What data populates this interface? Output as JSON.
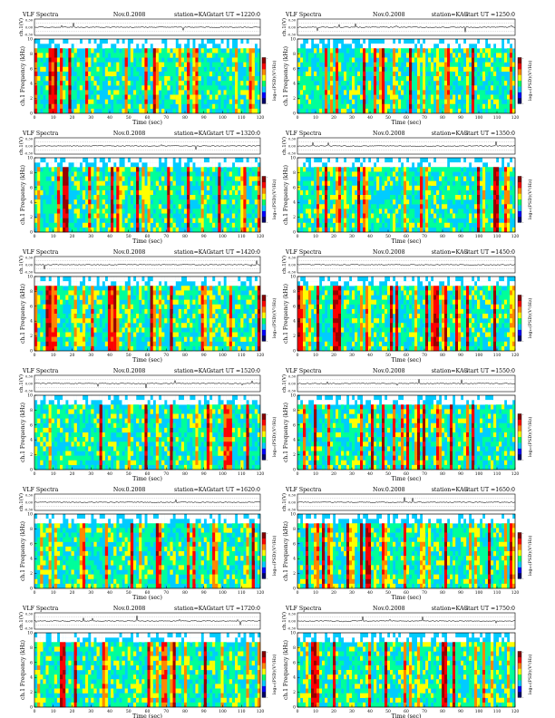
{
  "figure": {
    "spectrogram_palette": [
      "#ffffff",
      "#00ccff",
      "#00ff99",
      "#ffff00",
      "#ff8800",
      "#ff0000",
      "#990000"
    ],
    "colorbar_palette": [
      "#000066",
      "#0000ff",
      "#00ccff",
      "#00ff66",
      "#ffff00",
      "#ff8800",
      "#ff0000",
      "#880000"
    ],
    "panel_border_color": "#000000"
  },
  "chart_data": [
    {
      "type": "heatmap",
      "title_left": "VLF Spectra",
      "title_date": "Nov.0.2008",
      "title_station": "station=KAG",
      "title_start": "start  UT  =1220:0",
      "waveform_ylabel": "ch.1(V)",
      "waveform_ticks": [
        "0.30",
        "0.00",
        "-0.30"
      ],
      "ylabel": "ch.1  Frequency  (kHz)",
      "xlabel": "Time  (sec)",
      "xlim": [
        0,
        120
      ],
      "ylim": [
        0,
        10
      ],
      "x_ticks": [
        "0",
        "10",
        "20",
        "30",
        "40",
        "50",
        "60",
        "70",
        "80",
        "90",
        "100",
        "110",
        "120"
      ],
      "y_ticks": [
        "0",
        "2",
        "4",
        "6",
        "8",
        "10"
      ],
      "colorbar_label": "log₁₀(PSD)(V²/Hz)",
      "colorbar_ticks": [
        "-",
        "-"
      ]
    },
    {
      "type": "heatmap",
      "title_left": "VLF Spectra",
      "title_date": "Nov.0.2008",
      "title_station": "station=KAG",
      "title_start": "start  UT  =1250:0",
      "waveform_ylabel": "ch.1(V)",
      "waveform_ticks": [
        "0.30",
        "0.00",
        "-0.30"
      ],
      "ylabel": "ch.1  Frequency  (kHz)",
      "xlabel": "Time  (sec)",
      "xlim": [
        0,
        120
      ],
      "ylim": [
        0,
        10
      ],
      "x_ticks": [
        "0",
        "10",
        "20",
        "30",
        "40",
        "50",
        "60",
        "70",
        "80",
        "90",
        "100",
        "110",
        "120"
      ],
      "y_ticks": [
        "0",
        "2",
        "4",
        "6",
        "8",
        "10"
      ],
      "colorbar_label": "log₁₀(PSD)(V²/Hz)",
      "colorbar_ticks": [
        "-",
        "-"
      ]
    },
    {
      "type": "heatmap",
      "title_left": "VLF Spectra",
      "title_date": "Nov.0.2008",
      "title_station": "station=KAG",
      "title_start": "start  UT  =1320:0",
      "waveform_ylabel": "ch.1(V)",
      "waveform_ticks": [
        "0.30",
        "0.00",
        "-0.30"
      ],
      "ylabel": "ch.1  Frequency  (kHz)",
      "xlabel": "Time  (sec)",
      "xlim": [
        0,
        120
      ],
      "ylim": [
        0,
        10
      ],
      "x_ticks": [
        "0",
        "10",
        "20",
        "30",
        "40",
        "50",
        "60",
        "70",
        "80",
        "90",
        "100",
        "110",
        "120"
      ],
      "y_ticks": [
        "0",
        "2",
        "4",
        "6",
        "8",
        "10"
      ],
      "colorbar_label": "log₁₀(PSD)(V²/Hz)",
      "colorbar_ticks": [
        "-",
        "-"
      ]
    },
    {
      "type": "heatmap",
      "title_left": "VLF Spectra",
      "title_date": "Nov.0.2008",
      "title_station": "station=KAG",
      "title_start": "start  UT  =1350:0",
      "waveform_ylabel": "ch.1(V)",
      "waveform_ticks": [
        "0.30",
        "0.00",
        "-0.30"
      ],
      "ylabel": "ch.1  Frequency  (kHz)",
      "xlabel": "Time  (sec)",
      "xlim": [
        0,
        120
      ],
      "ylim": [
        0,
        10
      ],
      "x_ticks": [
        "0",
        "10",
        "20",
        "30",
        "40",
        "50",
        "60",
        "70",
        "80",
        "90",
        "100",
        "110",
        "120"
      ],
      "y_ticks": [
        "0",
        "2",
        "4",
        "6",
        "8",
        "10"
      ],
      "colorbar_label": "log₁₀(PSD)(V²/Hz)",
      "colorbar_ticks": [
        "-",
        "-"
      ]
    },
    {
      "type": "heatmap",
      "title_left": "VLF Spectra",
      "title_date": "Nov.0.2008",
      "title_station": "station=KAG",
      "title_start": "start  UT  =1420:0",
      "waveform_ylabel": "ch.1(V)",
      "waveform_ticks": [
        "0.30",
        "0.00",
        "-0.30"
      ],
      "ylabel": "ch.1  Frequency  (kHz)",
      "xlabel": "Time  (sec)",
      "xlim": [
        0,
        120
      ],
      "ylim": [
        0,
        10
      ],
      "x_ticks": [
        "0",
        "10",
        "20",
        "30",
        "40",
        "50",
        "60",
        "70",
        "80",
        "90",
        "100",
        "110",
        "120"
      ],
      "y_ticks": [
        "0",
        "2",
        "4",
        "6",
        "8",
        "10"
      ],
      "colorbar_label": "log₁₀(PSD)(V²/Hz)",
      "colorbar_ticks": [
        "-",
        "-"
      ]
    },
    {
      "type": "heatmap",
      "title_left": "VLF Spectra",
      "title_date": "Nov.0.2008",
      "title_station": "station=KAG",
      "title_start": "start  UT  =1450:0",
      "waveform_ylabel": "ch.1(V)",
      "waveform_ticks": [
        "0.30",
        "0.00",
        "-0.30"
      ],
      "ylabel": "ch.1  Frequency  (kHz)",
      "xlabel": "Time  (sec)",
      "xlim": [
        0,
        120
      ],
      "ylim": [
        0,
        10
      ],
      "x_ticks": [
        "0",
        "10",
        "20",
        "30",
        "40",
        "50",
        "60",
        "70",
        "80",
        "90",
        "100",
        "110",
        "120"
      ],
      "y_ticks": [
        "0",
        "2",
        "4",
        "6",
        "8",
        "10"
      ],
      "colorbar_label": "log₁₀(PSD)(V²/Hz)",
      "colorbar_ticks": [
        "-",
        "-"
      ]
    },
    {
      "type": "heatmap",
      "title_left": "VLF Spectra",
      "title_date": "Nov.0.2008",
      "title_station": "station=KAG",
      "title_start": "start  UT  =1520:0",
      "waveform_ylabel": "ch.1(V)",
      "waveform_ticks": [
        "0.30",
        "0.00",
        "-0.30"
      ],
      "ylabel": "ch.1  Frequency  (kHz)",
      "xlabel": "Time  (sec)",
      "xlim": [
        0,
        120
      ],
      "ylim": [
        0,
        10
      ],
      "x_ticks": [
        "0",
        "10",
        "20",
        "30",
        "40",
        "50",
        "60",
        "70",
        "80",
        "90",
        "100",
        "110",
        "120"
      ],
      "y_ticks": [
        "0",
        "2",
        "4",
        "6",
        "8",
        "10"
      ],
      "colorbar_label": "log₁₀(PSD)(V²/Hz)",
      "colorbar_ticks": [
        "-",
        "-"
      ]
    },
    {
      "type": "heatmap",
      "title_left": "VLF Spectra",
      "title_date": "Nov.0.2008",
      "title_station": "station=KAG",
      "title_start": "start  UT  =1550:0",
      "waveform_ylabel": "ch.1(V)",
      "waveform_ticks": [
        "0.30",
        "0.00",
        "-0.30"
      ],
      "ylabel": "ch.1  Frequency  (kHz)",
      "xlabel": "Time  (sec)",
      "xlim": [
        0,
        120
      ],
      "ylim": [
        0,
        10
      ],
      "x_ticks": [
        "0",
        "10",
        "20",
        "30",
        "40",
        "50",
        "60",
        "70",
        "80",
        "90",
        "100",
        "110",
        "120"
      ],
      "y_ticks": [
        "0",
        "2",
        "4",
        "6",
        "8",
        "10"
      ],
      "colorbar_label": "log₁₀(PSD)(V²/Hz)",
      "colorbar_ticks": [
        "-",
        "-"
      ]
    },
    {
      "type": "heatmap",
      "title_left": "VLF Spectra",
      "title_date": "Nov.0.2008",
      "title_station": "station=KAG",
      "title_start": "start  UT  =1620:0",
      "waveform_ylabel": "ch.1(V)",
      "waveform_ticks": [
        "0.30",
        "0.00",
        "-0.30"
      ],
      "ylabel": "ch.1  Frequency  (kHz)",
      "xlabel": "Time  (sec)",
      "xlim": [
        0,
        120
      ],
      "ylim": [
        0,
        10
      ],
      "x_ticks": [
        "0",
        "10",
        "20",
        "30",
        "40",
        "50",
        "60",
        "70",
        "80",
        "90",
        "100",
        "110",
        "120"
      ],
      "y_ticks": [
        "0",
        "2",
        "4",
        "6",
        "8",
        "10"
      ],
      "colorbar_label": "log₁₀(PSD)(V²/Hz)",
      "colorbar_ticks": [
        "-",
        "-"
      ]
    },
    {
      "type": "heatmap",
      "title_left": "VLF Spectra",
      "title_date": "Nov.0.2008",
      "title_station": "station=KAG",
      "title_start": "start  UT  =1650:0",
      "waveform_ylabel": "ch.1(V)",
      "waveform_ticks": [
        "0.30",
        "0.00",
        "-0.30"
      ],
      "ylabel": "ch.1  Frequency  (kHz)",
      "xlabel": "Time  (sec)",
      "xlim": [
        0,
        120
      ],
      "ylim": [
        0,
        10
      ],
      "x_ticks": [
        "0",
        "10",
        "20",
        "30",
        "40",
        "50",
        "60",
        "70",
        "80",
        "90",
        "100",
        "110",
        "120"
      ],
      "y_ticks": [
        "0",
        "2",
        "4",
        "6",
        "8",
        "10"
      ],
      "colorbar_label": "log₁₀(PSD)(V²/Hz)",
      "colorbar_ticks": [
        "-",
        "-"
      ]
    },
    {
      "type": "heatmap",
      "title_left": "VLF Spectra",
      "title_date": "Nov.0.2008",
      "title_station": "station=KAG",
      "title_start": "start  UT  =1720:0",
      "waveform_ylabel": "ch.1(V)",
      "waveform_ticks": [
        "0.30",
        "0.00",
        "-0.30"
      ],
      "ylabel": "ch.1  Frequency  (kHz)",
      "xlabel": "Time  (sec)",
      "xlim": [
        0,
        120
      ],
      "ylim": [
        0,
        10
      ],
      "x_ticks": [
        "0",
        "10",
        "20",
        "30",
        "40",
        "50",
        "60",
        "70",
        "80",
        "90",
        "100",
        "110",
        "120"
      ],
      "y_ticks": [
        "0",
        "2",
        "4",
        "6",
        "8",
        "10"
      ],
      "colorbar_label": "log₁₀(PSD)(V²/Hz)",
      "colorbar_ticks": [
        "-",
        "-"
      ]
    },
    {
      "type": "heatmap",
      "title_left": "VLF Spectra",
      "title_date": "Nov.0.2008",
      "title_station": "station=KAG",
      "title_start": "start  UT  =1750:0",
      "waveform_ylabel": "ch.1(V)",
      "waveform_ticks": [
        "0.30",
        "0.00",
        "-0.30"
      ],
      "ylabel": "ch.1  Frequency  (kHz)",
      "xlabel": "Time  (sec)",
      "xlim": [
        0,
        120
      ],
      "ylim": [
        0,
        10
      ],
      "x_ticks": [
        "0",
        "10",
        "20",
        "30",
        "40",
        "50",
        "60",
        "70",
        "80",
        "90",
        "100",
        "110",
        "120"
      ],
      "y_ticks": [
        "0",
        "2",
        "4",
        "6",
        "8",
        "10"
      ],
      "colorbar_label": "log₁₀(PSD)(V²/Hz)",
      "colorbar_ticks": [
        "-",
        "-"
      ]
    }
  ]
}
